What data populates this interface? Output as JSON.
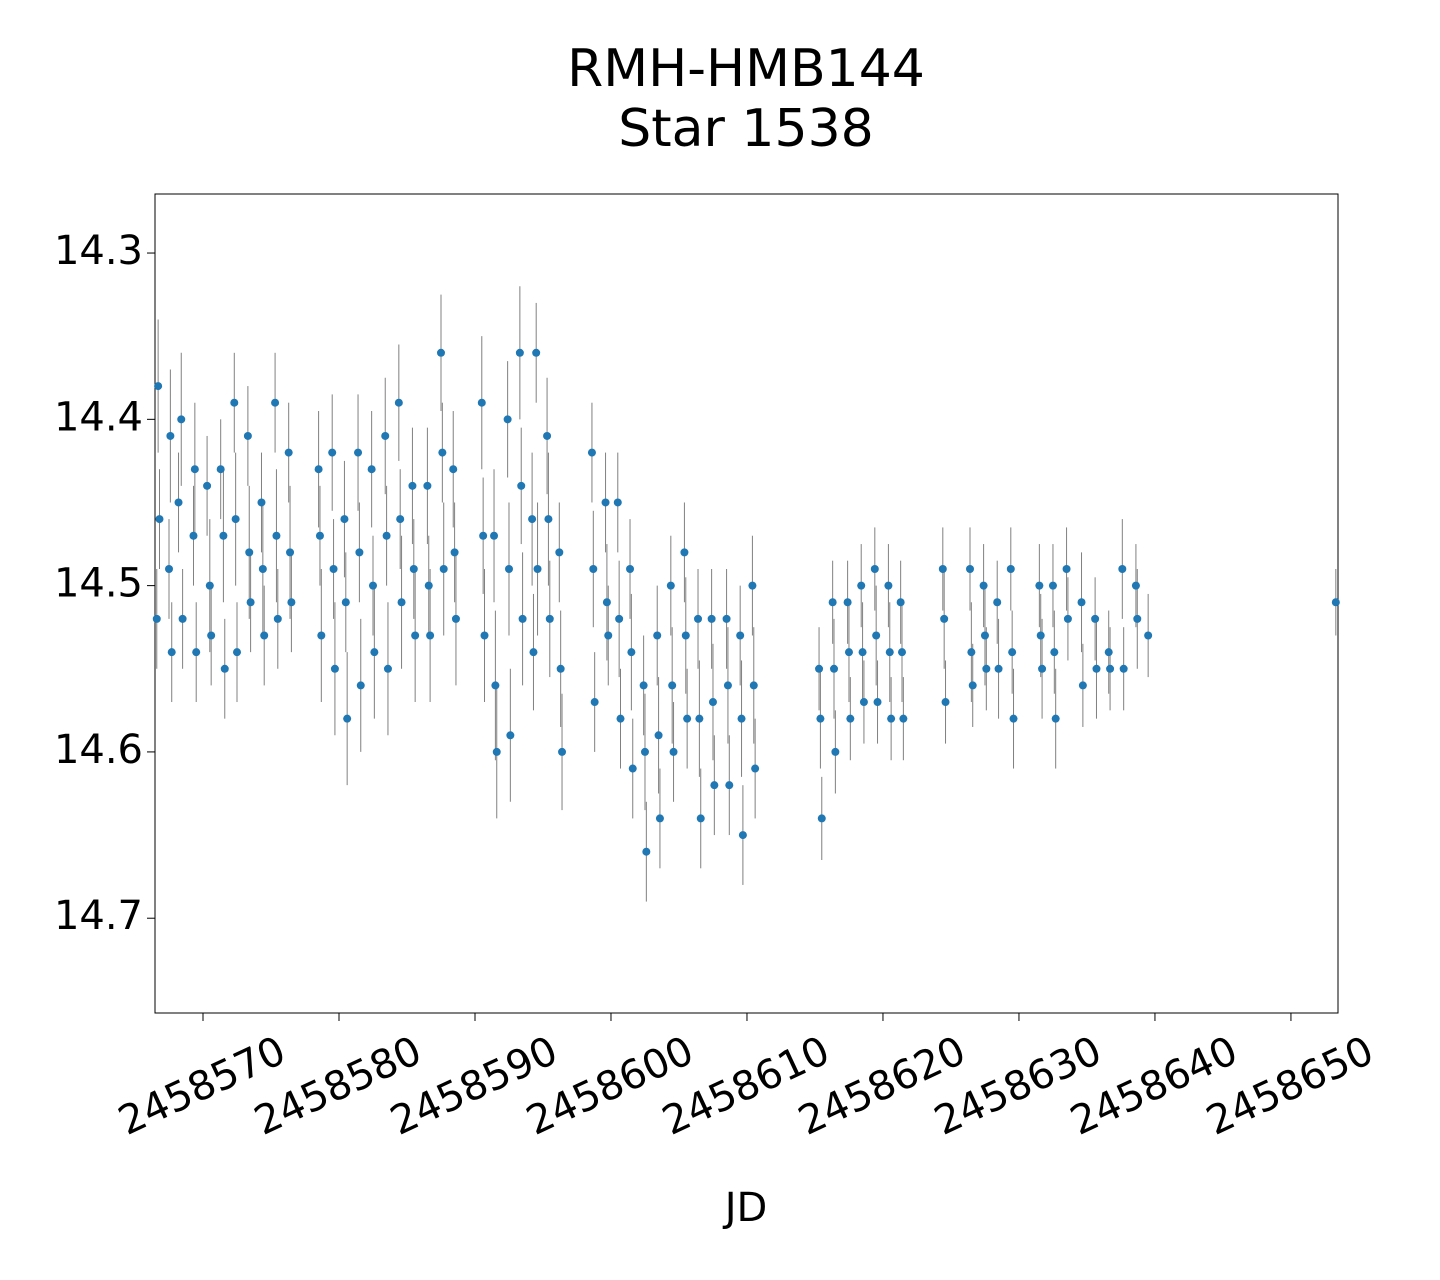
{
  "chart_data": {
    "type": "errorbar",
    "title": "RMH-HMB144",
    "subtitle": "Star 1538",
    "xlabel": "JD",
    "color": "#1f77b4",
    "error_color": "#808080",
    "xlim": [
      2458566.47,
      2458653.46
    ],
    "xticks": [
      2458570,
      2458580,
      2458590,
      2458600,
      2458610,
      2458620,
      2458630,
      2458640,
      2458650
    ],
    "ylim": [
      14.757,
      14.2645
    ],
    "yticks": [
      14.3,
      14.4,
      14.5,
      14.6,
      14.7
    ],
    "x": [
      2458566.6,
      2458566.7,
      2458566.8,
      2458567.5,
      2458567.6,
      2458567.7,
      2458568.2,
      2458568.4,
      2458568.5,
      2458569.3,
      2458569.4,
      2458569.5,
      2458570.3,
      2458570.5,
      2458570.6,
      2458571.3,
      2458571.5,
      2458571.6,
      2458572.3,
      2458572.4,
      2458572.5,
      2458573.3,
      2458573.4,
      2458573.5,
      2458574.3,
      2458574.4,
      2458574.5,
      2458575.3,
      2458575.4,
      2458575.5,
      2458576.3,
      2458576.4,
      2458576.5,
      2458578.5,
      2458578.6,
      2458578.7,
      2458579.5,
      2458579.6,
      2458579.7,
      2458580.4,
      2458580.5,
      2458580.6,
      2458581.4,
      2458581.5,
      2458581.6,
      2458582.4,
      2458582.5,
      2458582.6,
      2458583.4,
      2458583.5,
      2458583.6,
      2458584.4,
      2458584.5,
      2458584.6,
      2458585.4,
      2458585.5,
      2458585.6,
      2458586.5,
      2458586.6,
      2458586.7,
      2458587.5,
      2458587.6,
      2458587.7,
      2458588.4,
      2458588.5,
      2458588.6,
      2458590.5,
      2458590.6,
      2458590.7,
      2458591.4,
      2458591.5,
      2458591.6,
      2458592.4,
      2458592.5,
      2458592.6,
      2458593.3,
      2458593.4,
      2458593.5,
      2458594.2,
      2458594.3,
      2458594.5,
      2458594.6,
      2458595.3,
      2458595.4,
      2458595.5,
      2458596.2,
      2458596.3,
      2458596.4,
      2458598.6,
      2458598.7,
      2458598.8,
      2458599.6,
      2458599.7,
      2458599.8,
      2458600.5,
      2458600.6,
      2458600.7,
      2458601.4,
      2458601.5,
      2458601.6,
      2458602.4,
      2458602.5,
      2458602.6,
      2458603.4,
      2458603.5,
      2458603.6,
      2458604.4,
      2458604.5,
      2458604.6,
      2458605.4,
      2458605.5,
      2458605.6,
      2458606.4,
      2458606.5,
      2458606.6,
      2458607.4,
      2458607.5,
      2458607.6,
      2458608.5,
      2458608.6,
      2458608.7,
      2458609.5,
      2458609.6,
      2458609.7,
      2458610.4,
      2458610.5,
      2458610.6,
      2458615.3,
      2458615.4,
      2458615.5,
      2458616.3,
      2458616.4,
      2458616.5,
      2458617.4,
      2458617.5,
      2458617.6,
      2458618.4,
      2458618.5,
      2458618.6,
      2458619.4,
      2458619.5,
      2458619.6,
      2458620.4,
      2458620.5,
      2458620.6,
      2458621.3,
      2458621.4,
      2458621.5,
      2458624.4,
      2458624.5,
      2458624.6,
      2458626.4,
      2458626.5,
      2458626.6,
      2458627.4,
      2458627.5,
      2458627.6,
      2458628.4,
      2458628.5,
      2458629.4,
      2458629.5,
      2458629.6,
      2458631.5,
      2458631.6,
      2458631.7,
      2458632.5,
      2458632.6,
      2458632.7,
      2458633.5,
      2458633.6,
      2458634.6,
      2458634.7,
      2458635.6,
      2458635.7,
      2458636.6,
      2458636.7,
      2458637.6,
      2458637.7,
      2458638.6,
      2458638.7,
      2458639.5,
      2458653.3
    ],
    "values": [
      14.52,
      14.38,
      14.46,
      14.49,
      14.41,
      14.54,
      14.45,
      14.4,
      14.52,
      14.47,
      14.43,
      14.54,
      14.44,
      14.5,
      14.53,
      14.43,
      14.47,
      14.55,
      14.39,
      14.46,
      14.54,
      14.41,
      14.48,
      14.51,
      14.45,
      14.49,
      14.53,
      14.39,
      14.47,
      14.52,
      14.42,
      14.48,
      14.51,
      14.43,
      14.47,
      14.53,
      14.42,
      14.49,
      14.55,
      14.46,
      14.51,
      14.58,
      14.42,
      14.48,
      14.56,
      14.43,
      14.5,
      14.54,
      14.41,
      14.47,
      14.55,
      14.39,
      14.46,
      14.51,
      14.44,
      14.49,
      14.53,
      14.44,
      14.5,
      14.53,
      14.36,
      14.42,
      14.49,
      14.43,
      14.48,
      14.52,
      14.39,
      14.47,
      14.53,
      14.47,
      14.56,
      14.6,
      14.4,
      14.49,
      14.59,
      14.36,
      14.44,
      14.52,
      14.46,
      14.54,
      14.36,
      14.49,
      14.41,
      14.46,
      14.52,
      14.48,
      14.55,
      14.6,
      14.42,
      14.49,
      14.57,
      14.45,
      14.51,
      14.53,
      14.45,
      14.52,
      14.58,
      14.49,
      14.54,
      14.61,
      14.56,
      14.6,
      14.66,
      14.53,
      14.59,
      14.64,
      14.5,
      14.56,
      14.6,
      14.48,
      14.53,
      14.58,
      14.52,
      14.58,
      14.64,
      14.52,
      14.57,
      14.62,
      14.52,
      14.56,
      14.62,
      14.53,
      14.58,
      14.65,
      14.5,
      14.56,
      14.61,
      14.55,
      14.58,
      14.64,
      14.51,
      14.55,
      14.6,
      14.51,
      14.54,
      14.58,
      14.5,
      14.54,
      14.57,
      14.49,
      14.53,
      14.57,
      14.5,
      14.54,
      14.58,
      14.51,
      14.54,
      14.58,
      14.49,
      14.52,
      14.57,
      14.49,
      14.54,
      14.56,
      14.5,
      14.53,
      14.55,
      14.51,
      14.55,
      14.49,
      14.54,
      14.58,
      14.5,
      14.53,
      14.55,
      14.5,
      14.54,
      14.58,
      14.49,
      14.52,
      14.51,
      14.56,
      14.52,
      14.55,
      14.54,
      14.55,
      14.49,
      14.55,
      14.5,
      14.52,
      14.53,
      14.51
    ],
    "errors": [
      0.03,
      0.04,
      0.03,
      0.03,
      0.04,
      0.03,
      0.03,
      0.04,
      0.03,
      0.03,
      0.04,
      0.03,
      0.03,
      0.04,
      0.03,
      0.03,
      0.04,
      0.03,
      0.03,
      0.04,
      0.03,
      0.03,
      0.04,
      0.03,
      0.03,
      0.04,
      0.03,
      0.03,
      0.04,
      0.03,
      0.03,
      0.04,
      0.03,
      0.035,
      0.03,
      0.04,
      0.035,
      0.03,
      0.04,
      0.035,
      0.03,
      0.04,
      0.035,
      0.03,
      0.04,
      0.035,
      0.03,
      0.04,
      0.035,
      0.03,
      0.04,
      0.035,
      0.03,
      0.04,
      0.035,
      0.03,
      0.04,
      0.035,
      0.03,
      0.04,
      0.035,
      0.03,
      0.04,
      0.035,
      0.03,
      0.04,
      0.04,
      0.035,
      0.04,
      0.04,
      0.045,
      0.04,
      0.035,
      0.04,
      0.04,
      0.04,
      0.035,
      0.04,
      0.04,
      0.035,
      0.03,
      0.04,
      0.035,
      0.04,
      0.035,
      0.03,
      0.035,
      0.035,
      0.03,
      0.035,
      0.03,
      0.03,
      0.035,
      0.03,
      0.03,
      0.035,
      0.03,
      0.03,
      0.035,
      0.03,
      0.03,
      0.035,
      0.03,
      0.03,
      0.035,
      0.03,
      0.03,
      0.035,
      0.03,
      0.03,
      0.035,
      0.03,
      0.03,
      0.035,
      0.03,
      0.03,
      0.035,
      0.03,
      0.03,
      0.035,
      0.03,
      0.03,
      0.035,
      0.03,
      0.03,
      0.035,
      0.03,
      0.025,
      0.03,
      0.025,
      0.025,
      0.03,
      0.025,
      0.025,
      0.03,
      0.025,
      0.025,
      0.03,
      0.025,
      0.025,
      0.03,
      0.025,
      0.025,
      0.03,
      0.025,
      0.025,
      0.03,
      0.025,
      0.025,
      0.03,
      0.025,
      0.025,
      0.03,
      0.025,
      0.025,
      0.03,
      0.025,
      0.025,
      0.03,
      0.025,
      0.025,
      0.03,
      0.025,
      0.025,
      0.03,
      0.025,
      0.025,
      0.03,
      0.025,
      0.025,
      0.03,
      0.025,
      0.025,
      0.03,
      0.025,
      0.025,
      0.03,
      0.025,
      0.025,
      0.03,
      0.025,
      0.02
    ]
  }
}
